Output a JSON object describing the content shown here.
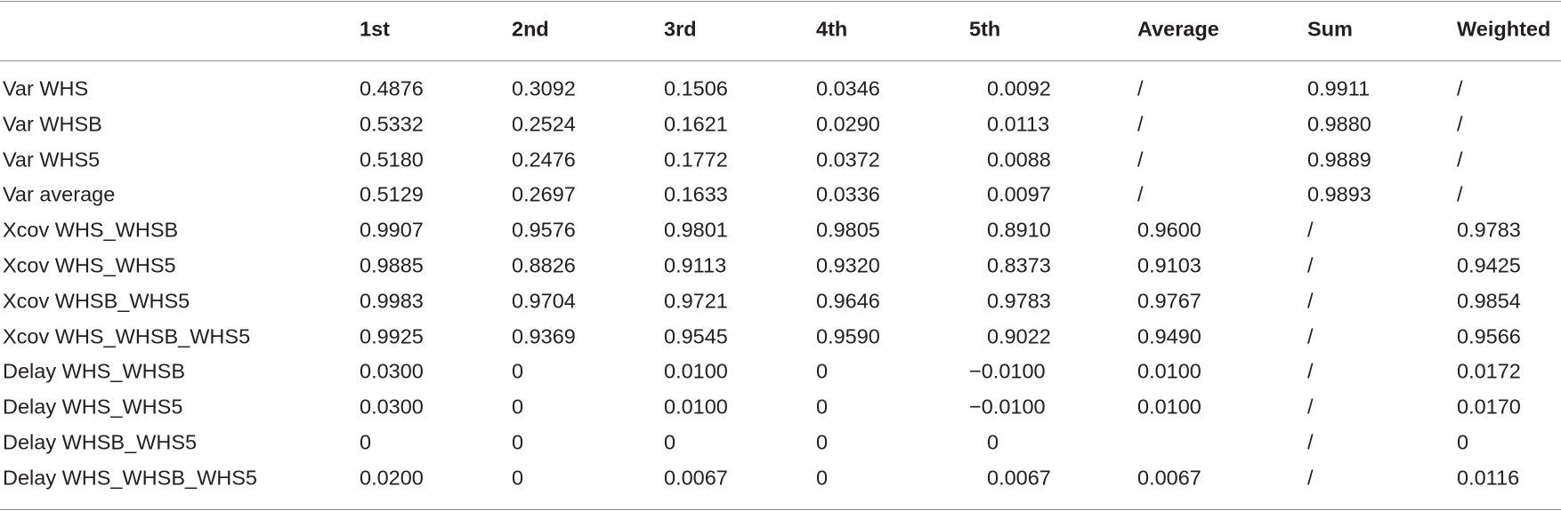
{
  "table": {
    "columns": [
      "",
      "1st",
      "2nd",
      "3rd",
      "4th",
      "5th",
      "Average",
      "Sum",
      "Weighted"
    ],
    "rows": [
      [
        "Var WHS",
        "0.4876",
        "0.3092",
        "0.1506",
        "0.0346",
        "0.0092",
        "/",
        "0.9911",
        "/"
      ],
      [
        "Var WHSB",
        "0.5332",
        "0.2524",
        "0.1621",
        "0.0290",
        "0.0113",
        "/",
        "0.9880",
        "/"
      ],
      [
        "Var WHS5",
        "0.5180",
        "0.2476",
        "0.1772",
        "0.0372",
        "0.0088",
        "/",
        "0.9889",
        "/"
      ],
      [
        "Var average",
        "0.5129",
        "0.2697",
        "0.1633",
        "0.0336",
        "0.0097",
        "/",
        "0.9893",
        "/"
      ],
      [
        "Xcov WHS_WHSB",
        "0.9907",
        "0.9576",
        "0.9801",
        "0.9805",
        "0.8910",
        "0.9600",
        "/",
        "0.9783"
      ],
      [
        "Xcov WHS_WHS5",
        "0.9885",
        "0.8826",
        "0.9113",
        "0.9320",
        "0.8373",
        "0.9103",
        "/",
        "0.9425"
      ],
      [
        "Xcov WHSB_WHS5",
        "0.9983",
        "0.9704",
        "0.9721",
        "0.9646",
        "0.9783",
        "0.9767",
        "/",
        "0.9854"
      ],
      [
        "Xcov WHS_WHSB_WHS5",
        "0.9925",
        "0.9369",
        "0.9545",
        "0.9590",
        "0.9022",
        "0.9490",
        "/",
        "0.9566"
      ],
      [
        "Delay WHS_WHSB",
        "0.0300",
        "0",
        "0.0100",
        "0",
        "−0.0100",
        "0.0100",
        "/",
        "0.0172"
      ],
      [
        "Delay WHS_WHS5",
        "0.0300",
        "0",
        "0.0100",
        "0",
        "−0.0100",
        "0.0100",
        "/",
        "0.0170"
      ],
      [
        "Delay WHSB_WHS5",
        "0",
        "0",
        "0",
        "0",
        "0",
        null,
        "/",
        "0"
      ],
      [
        "Delay WHS_WHSB_WHS5",
        "0.0200",
        "0",
        "0.0067",
        "0",
        "0.0067",
        "0.0067",
        "/",
        "0.0116"
      ]
    ]
  }
}
